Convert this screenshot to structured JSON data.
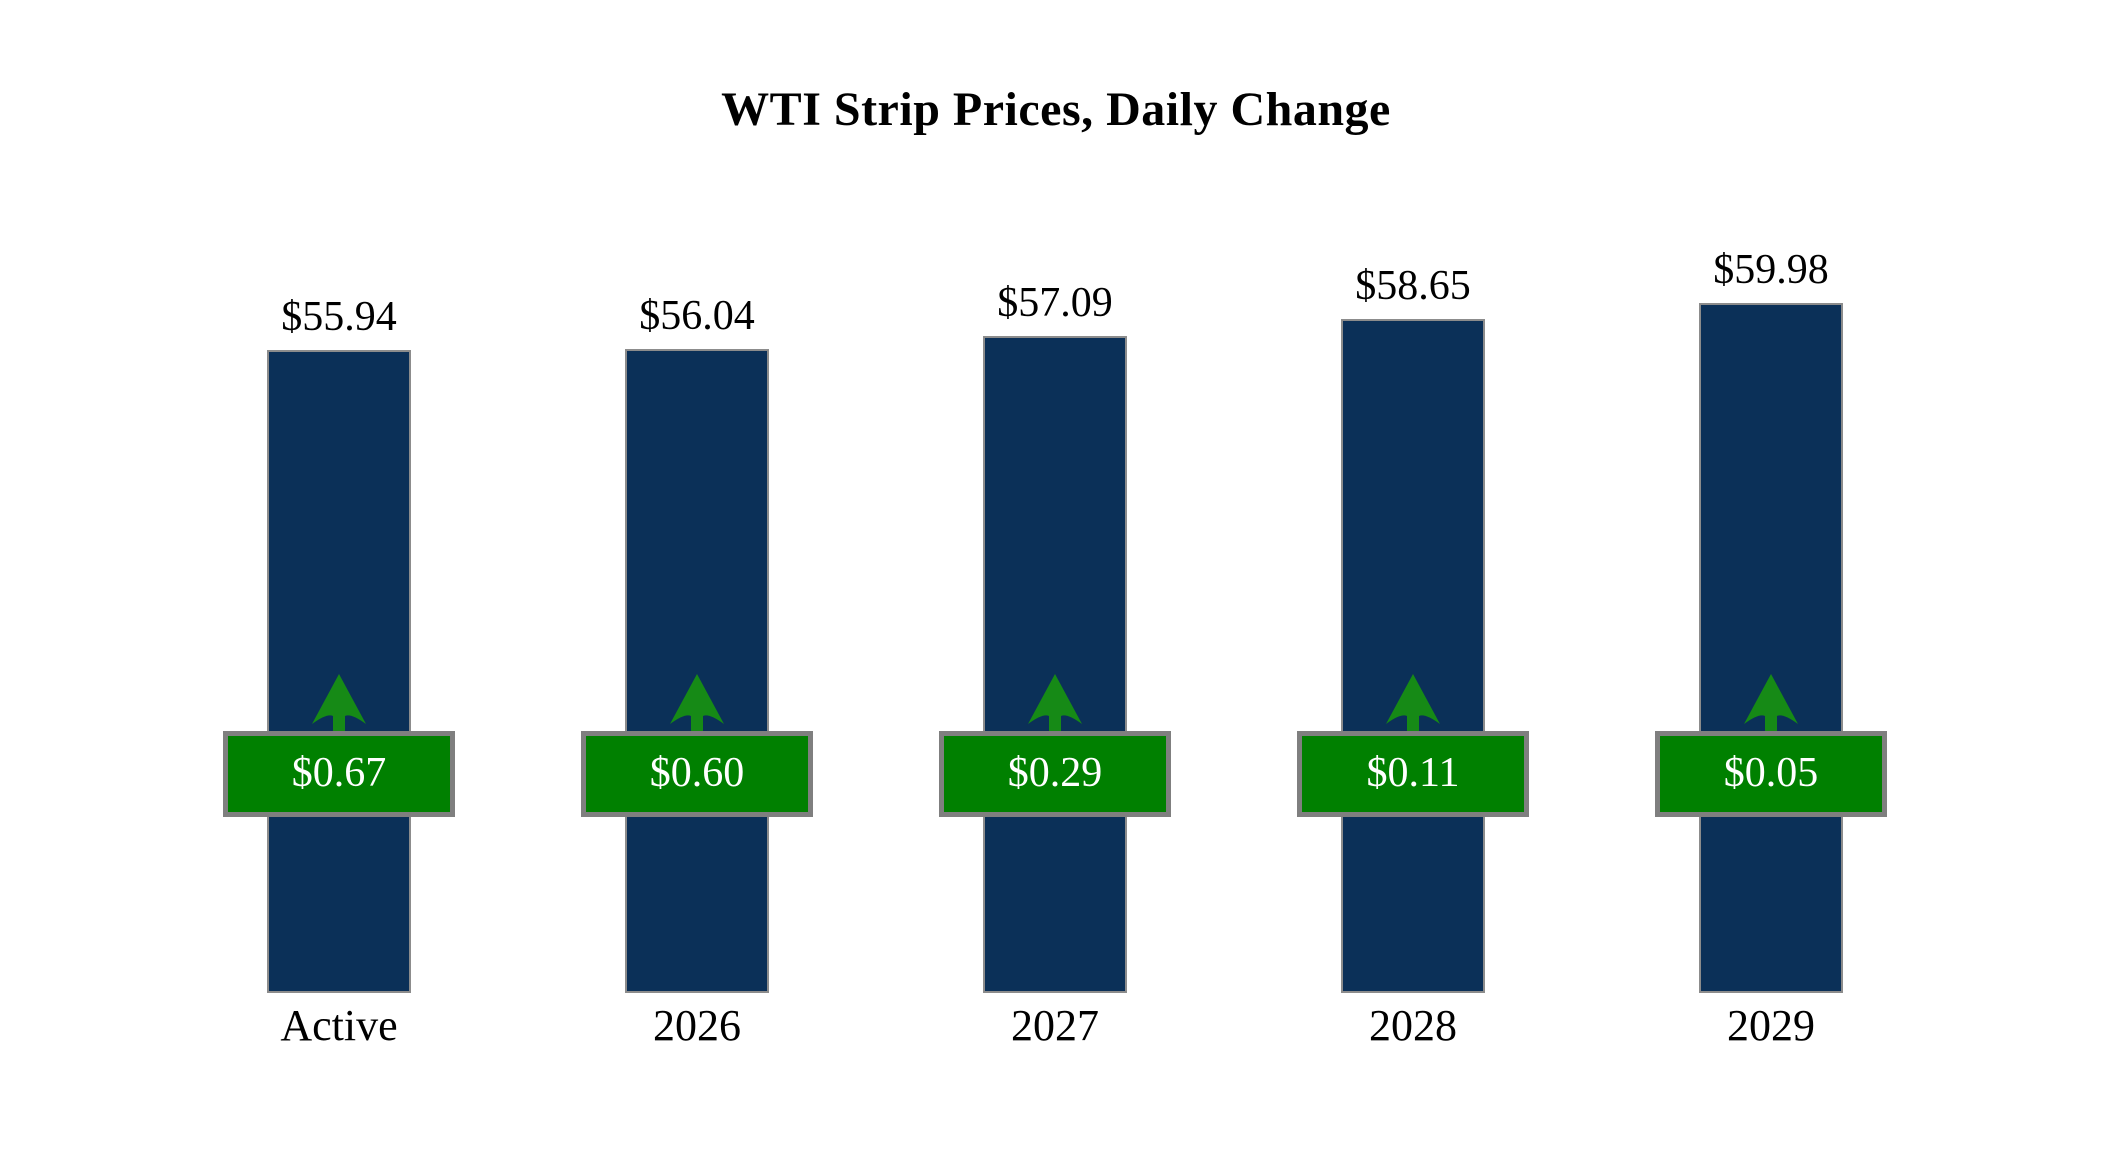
{
  "chart_data": {
    "type": "bar",
    "title": "WTI Strip Prices, Daily Change",
    "categories": [
      "Active",
      "2026",
      "2027",
      "2028",
      "2029"
    ],
    "series": [
      {
        "name": "WTI Strip Price",
        "values": [
          55.94,
          56.04,
          57.09,
          58.65,
          59.98
        ],
        "labels": [
          "$55.94",
          "$56.04",
          "$57.09",
          "$58.65",
          "$59.98"
        ]
      },
      {
        "name": "Daily Change",
        "values": [
          0.67,
          0.6,
          0.29,
          0.11,
          0.05
        ],
        "labels": [
          "$0.67",
          "$0.60",
          "$0.29",
          "$0.11",
          "$0.05"
        ],
        "direction": "up"
      }
    ],
    "ylim": [
      0,
      60
    ],
    "grid": false,
    "legend": false,
    "colors": {
      "bar_fill": "#0B3058",
      "bar_border": "#8C8C8C",
      "badge_fill": "#008000",
      "badge_border": "#7F7F7F",
      "badge_text": "#FFFFFF",
      "arrow": "#168A16",
      "label_text": "#000000",
      "background": "#FFFFFF"
    }
  }
}
